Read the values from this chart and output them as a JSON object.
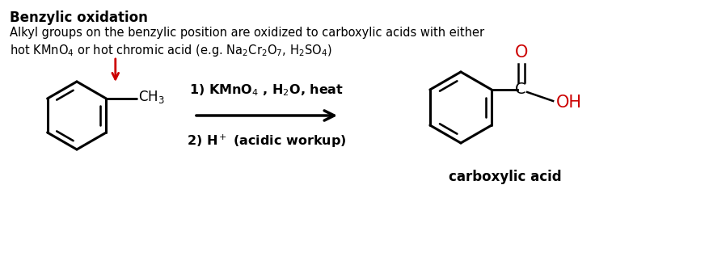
{
  "title": "Benzylic oxidation",
  "subtitle_line1": "Alkyl groups on the benzylic position are oxidized to carboxylic acids with either",
  "subtitle_line2_parts": [
    {
      "text": "hot KMnO",
      "sub": "4",
      "rest": " or hot chromic acid (e.g. Na",
      "sub2": "2",
      "rest2": "Cr",
      "sub3": "2",
      "rest3": "O",
      "sub4": "7",
      "rest4": ", H",
      "sub5": "2",
      "rest5": "SO",
      "sub6": "4",
      "rest6": ")"
    }
  ],
  "reaction_step1_parts": [
    {
      "text": "1) KMnO",
      "sub": "4",
      "rest": " , H",
      "sub2": "2",
      "rest2": "O, heat"
    }
  ],
  "reaction_step2_parts": [
    {
      "text": "2) H",
      "sup": "+",
      "rest": " (acidic workup)"
    }
  ],
  "product_label": "carboxylic acid",
  "bg_color": "#ffffff",
  "text_color": "#000000",
  "red_color": "#cc0000",
  "arrow_color": "#000000",
  "title_fontsize": 12,
  "body_fontsize": 10.5,
  "reaction_fontsize": 11.5
}
